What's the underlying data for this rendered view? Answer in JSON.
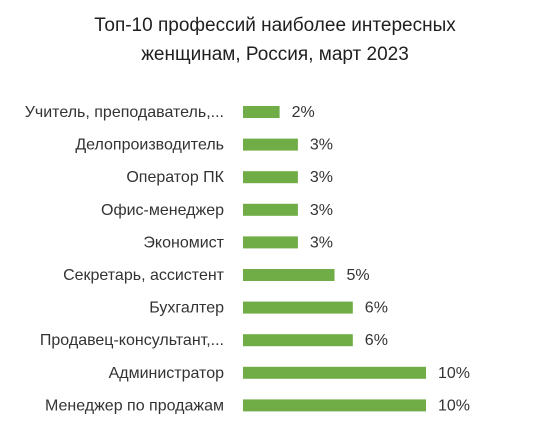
{
  "chart_data": {
    "type": "bar",
    "orientation": "horizontal",
    "title_lines": [
      "Топ-10 профессий наиболее интересных",
      "женщинам, Россия, март 2023"
    ],
    "categories": [
      "Учитель, преподаватель,...",
      "Делопроизводитель",
      "Оператор ПК",
      "Офис-менеджер",
      "Экономист",
      "Секретарь, ассистент",
      "Бухгалтер",
      "Продавец-консультант,...",
      "Администратор",
      "Менеджер по продажам"
    ],
    "values": [
      2,
      3,
      3,
      3,
      3,
      5,
      6,
      6,
      10,
      10
    ],
    "value_labels": [
      "2%",
      "3%",
      "3%",
      "3%",
      "3%",
      "5%",
      "6%",
      "6%",
      "10%",
      "10%"
    ],
    "xlim": [
      0,
      10
    ],
    "grid": false,
    "legend": "none",
    "bar_color": "#70ad47"
  }
}
